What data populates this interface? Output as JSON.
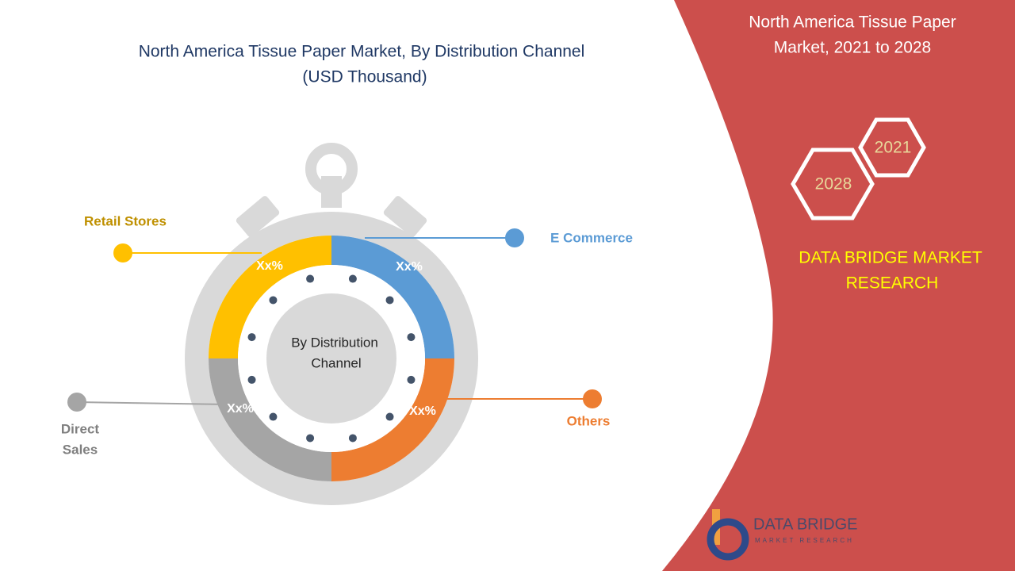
{
  "title_lines": [
    "North America Tissue Paper Market,  By Distribution Channel",
    "(USD Thousand)"
  ],
  "center_label_lines": [
    "By Distribution",
    "Channel"
  ],
  "segments": [
    {
      "name_lines": [
        "E Commerce"
      ],
      "label": "Xx%",
      "color": "#5b9bd5"
    },
    {
      "name_lines": [
        "Others"
      ],
      "label": "Xx%",
      "color": "#ed7d31"
    },
    {
      "name_lines": [
        "Direct",
        "Sales"
      ],
      "label": "Xx%",
      "color": "#a5a5a5"
    },
    {
      "name_lines": [
        "Retail Stores"
      ],
      "label": "Xx%",
      "color": "#ffc000"
    }
  ],
  "side_panel": {
    "heading_lines": [
      "North America Tissue Paper",
      "Market, 2021 to 2028"
    ],
    "years": [
      "2021",
      "2028"
    ],
    "brand_lines": [
      "DATA BRIDGE MARKET",
      "RESEARCH"
    ]
  },
  "logo": {
    "name": "DATA BRIDGE",
    "tagline": "MARKET RESEARCH"
  }
}
